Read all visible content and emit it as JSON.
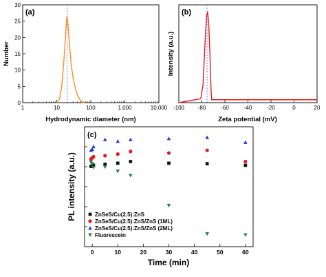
{
  "chart_data": [
    {
      "id": "a",
      "type": "line",
      "panel_label": "(a)",
      "xlabel": "Hydrodynamic diameter (nm)",
      "ylabel": "Number",
      "xscale": "log",
      "xlim": [
        1,
        10000
      ],
      "ylim": [
        0,
        30
      ],
      "xticks": [
        1,
        10,
        100,
        1000,
        10000
      ],
      "xtick_labels": [
        "1",
        "10",
        "100",
        "1,000",
        "10,000"
      ],
      "yticks": [
        0,
        5,
        10,
        15,
        20,
        25,
        30
      ],
      "ytick_labels": [
        "0",
        "5",
        "10",
        "15",
        "20",
        "25",
        "30"
      ],
      "color": "#ff8c1a",
      "peak_line_x": 20,
      "series": [
        {
          "x": [
            10,
            12,
            14,
            16,
            17.5,
            19,
            20,
            21,
            22.5,
            24,
            27,
            31,
            36,
            42,
            50,
            58,
            65
          ],
          "y": [
            0,
            1,
            5,
            12,
            18,
            24,
            26.5,
            25,
            21,
            17,
            11,
            7,
            4,
            2,
            0.6,
            0.1,
            0
          ]
        }
      ]
    },
    {
      "id": "b",
      "type": "line",
      "panel_label": "(b)",
      "xlabel": "Zeta potential (mV)",
      "ylabel": "Intensity (a.u.)",
      "xlim": [
        -100,
        20
      ],
      "xticks": [
        -100,
        -80,
        -60,
        -40,
        -20,
        0,
        20
      ],
      "xtick_labels": [
        "-100",
        "-80",
        "-60",
        "-40",
        "-20",
        "0",
        "20"
      ],
      "color": "#e8161c",
      "peak_line_x": -75.5,
      "series": [
        {
          "x": [
            -100,
            -81,
            -79,
            -77.5,
            -76,
            -75,
            -74,
            -73,
            -72,
            -71.5,
            20
          ],
          "y": [
            0,
            0.04,
            0.18,
            0.55,
            0.88,
            0.93,
            0.8,
            0.5,
            0.12,
            0.03,
            0.03
          ]
        }
      ]
    },
    {
      "id": "c",
      "type": "scatter",
      "panel_label": "(c)",
      "xlabel": "Time (min)",
      "ylabel": "PL intensity (a.u.)",
      "xlim": [
        -3,
        63
      ],
      "ylim": [
        0,
        1.12
      ],
      "xticks": [
        0,
        10,
        20,
        30,
        40,
        50,
        60
      ],
      "xtick_labels": [
        "0",
        "10",
        "20",
        "30",
        "40",
        "50",
        "60"
      ],
      "legend": "bottom-left",
      "series": [
        {
          "name": "ZnSeS/Cu(2.5):ZnS",
          "marker": "square",
          "color": "#111111",
          "x": [
            -0.5,
            0,
            0.5,
            5,
            10,
            15,
            30,
            45,
            60
          ],
          "y": [
            0.75,
            0.755,
            0.76,
            0.77,
            0.78,
            0.795,
            0.78,
            0.775,
            0.76
          ]
        },
        {
          "name": "ZnSeS/Cu(2.5):ZnS/ZnS (1ML)",
          "marker": "circle",
          "color": "#e8161c",
          "x": [
            -0.5,
            0,
            0.5,
            5,
            10,
            15,
            30,
            45,
            60
          ],
          "y": [
            0.82,
            0.83,
            0.84,
            0.85,
            0.865,
            0.89,
            0.875,
            0.9,
            0.795
          ]
        },
        {
          "name": "ZnSeS/Cu(2.5):ZnS/ZnS (2ML)",
          "marker": "triangle-up",
          "color": "#1f3fd8",
          "x": [
            -0.5,
            0,
            0.5,
            5,
            10,
            15,
            30,
            45,
            60
          ],
          "y": [
            0.9,
            0.91,
            0.935,
            1.0,
            0.985,
            1.0,
            1.01,
            1.02,
            0.975
          ]
        },
        {
          "name": "Fluorescein",
          "marker": "triangle-down",
          "color": "#1f8a3a",
          "x": [
            -0.5,
            0,
            0.5,
            5,
            10,
            15,
            30,
            45,
            60
          ],
          "y": [
            0.79,
            0.775,
            0.74,
            0.745,
            0.705,
            0.665,
            0.385,
            0.12,
            0.11
          ]
        }
      ]
    }
  ]
}
